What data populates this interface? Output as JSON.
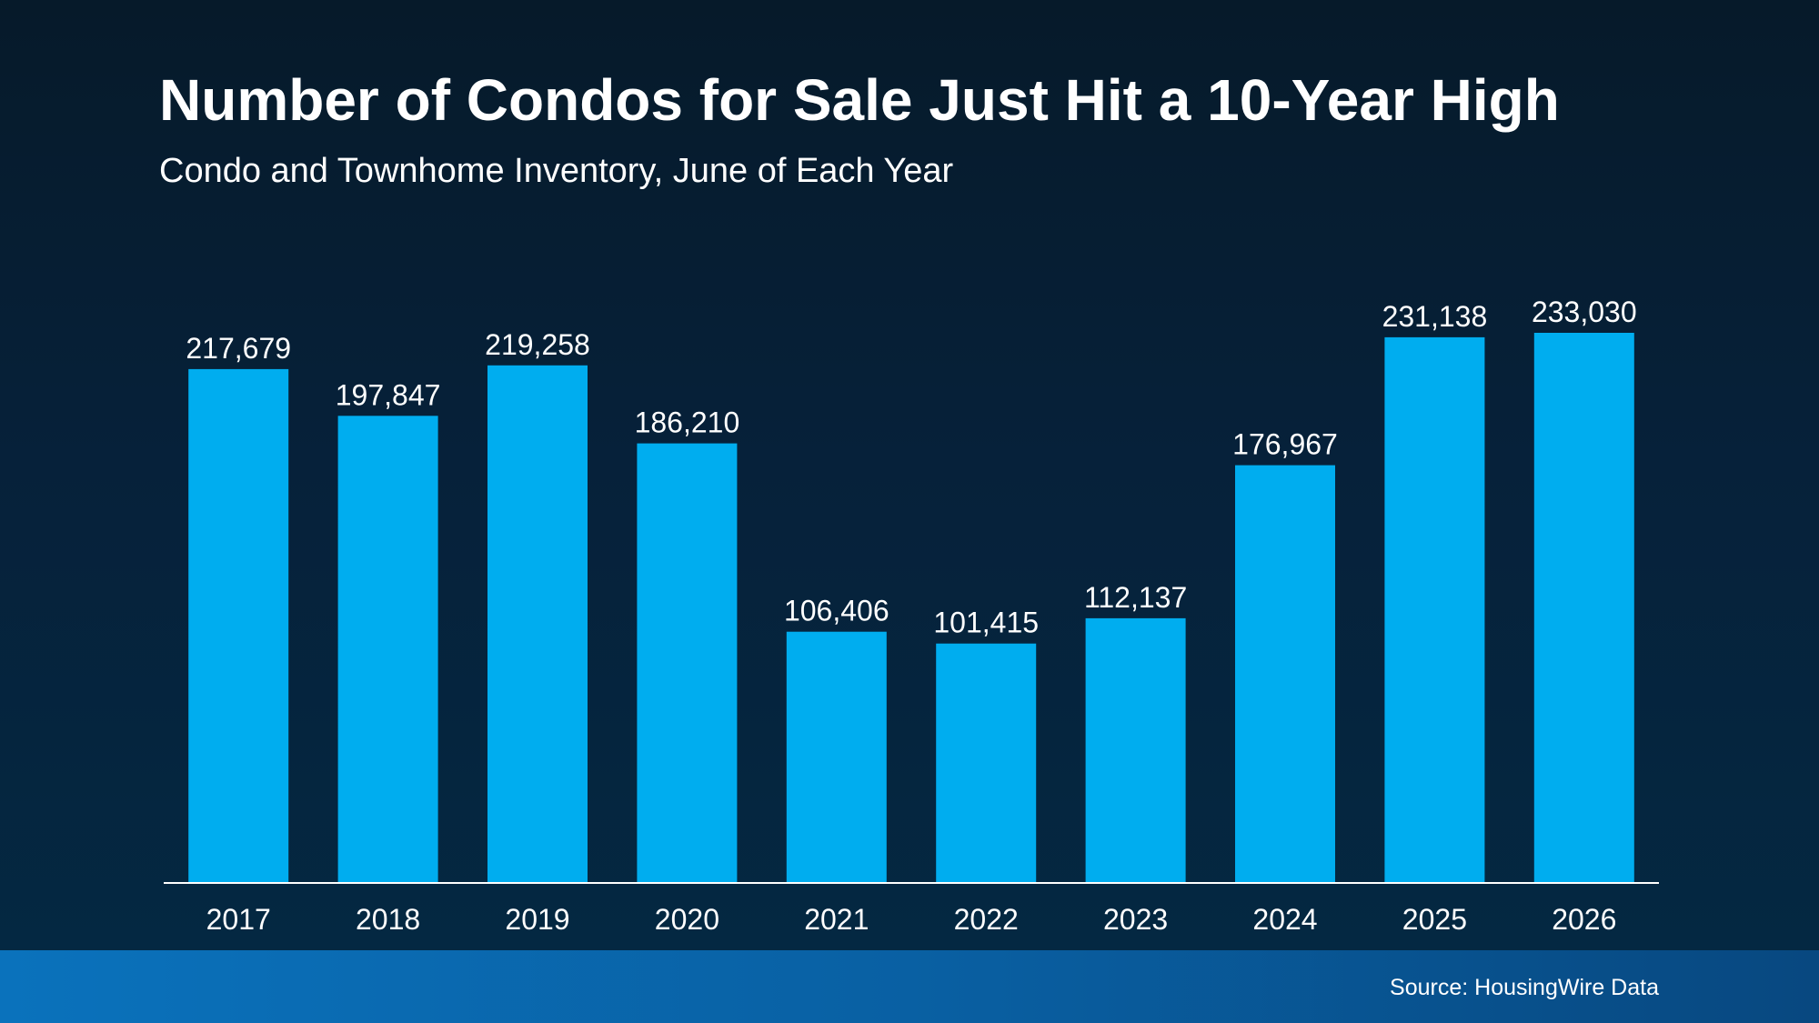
{
  "title": "Number of Condos for Sale Just Hit a 10-Year High",
  "subtitle": "Condo and Townhome Inventory, June of Each Year",
  "source": "Source: HousingWire Data",
  "colors": {
    "bar": "#00adef",
    "background": "#061f35",
    "footer": "#0a6ab0",
    "text": "#ffffff"
  },
  "chart_data": {
    "type": "bar",
    "categories": [
      "2017",
      "2018",
      "2019",
      "2020",
      "2021",
      "2022",
      "2023",
      "2024",
      "2025",
      "2026"
    ],
    "values": [
      217679,
      197847,
      219258,
      186210,
      106406,
      101415,
      112137,
      176967,
      231138,
      233030
    ],
    "value_labels": [
      "217,679",
      "197,847",
      "219,258",
      "186,210",
      "106,406",
      "101,415",
      "112,137",
      "176,967",
      "231,138",
      "233,030"
    ],
    "title": "Number of Condos for Sale Just Hit a 10-Year High",
    "subtitle": "Condo and Townhome Inventory, June of Each Year",
    "xlabel": "",
    "ylabel": "",
    "ylim": [
      0,
      233030
    ],
    "grid": false,
    "legend": "none"
  }
}
